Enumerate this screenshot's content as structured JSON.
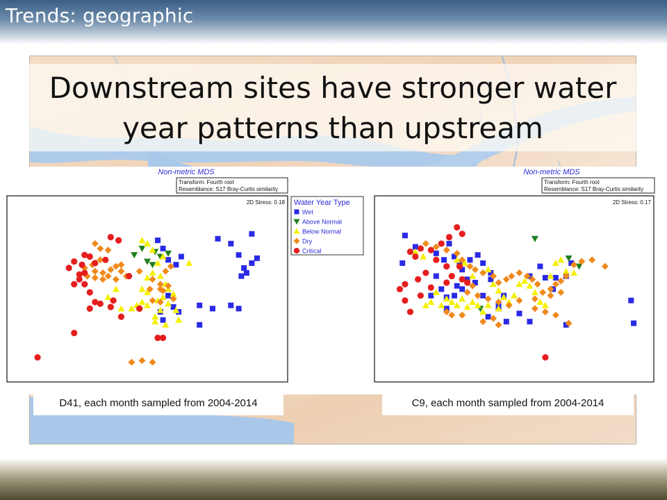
{
  "slide": {
    "header": "Trends: geographic",
    "title_line1": "Downstream sites have stronger water",
    "title_line2": "year patterns than upstream"
  },
  "legend": {
    "title": "Water Year Type",
    "items": [
      {
        "label": "Wet",
        "shape": "square",
        "color": "#2a2ae6"
      },
      {
        "label": "Above Normal",
        "shape": "triangle-down",
        "color": "#1e7f1e"
      },
      {
        "label": "Below Normal",
        "shape": "triangle-up",
        "color": "#f5f000"
      },
      {
        "label": "Dry",
        "shape": "diamond",
        "color": "#f08a1c"
      },
      {
        "label": "Critical",
        "shape": "circle",
        "color": "#e61e1e"
      }
    ]
  },
  "chart_data": [
    {
      "type": "scatter",
      "title": "Non-metric MDS",
      "info_line1": "Transform: Fourth root",
      "info_line2": "Resemblance: S17 Bray-Curtis similarity",
      "stress_text": "2D Stress: 0.18",
      "caption": "D41, each month sampled from 2004-2014",
      "xlim": [
        0,
        100
      ],
      "ylim": [
        0,
        100
      ],
      "axes_shown": false,
      "series": [
        {
          "name": "Wet",
          "points": [
            [
              54,
              82
            ],
            [
              56,
              77
            ],
            [
              58,
              70
            ],
            [
              61,
              67
            ],
            [
              63,
              72
            ],
            [
              77,
              83
            ],
            [
              82,
              80
            ],
            [
              90,
              86
            ],
            [
              85,
              73
            ],
            [
              90,
              68
            ],
            [
              87,
              65
            ],
            [
              88,
              62
            ],
            [
              92,
              71
            ],
            [
              86,
              60
            ],
            [
              58,
              48
            ],
            [
              60,
              41
            ],
            [
              62,
              38
            ],
            [
              56,
              33
            ],
            [
              55,
              38
            ],
            [
              70,
              42
            ],
            [
              75,
              40
            ],
            [
              82,
              42
            ],
            [
              85,
              40
            ],
            [
              70,
              30
            ]
          ]
        },
        {
          "name": "Above Normal",
          "points": [
            [
              45,
              73
            ],
            [
              48,
              77
            ],
            [
              53,
              75
            ],
            [
              50,
              69
            ],
            [
              52,
              67
            ],
            [
              55,
              72
            ],
            [
              58,
              74
            ]
          ]
        },
        {
          "name": "Below Normal",
          "points": [
            [
              48,
              82
            ],
            [
              50,
              80
            ],
            [
              52,
              76
            ],
            [
              54,
              68
            ],
            [
              56,
              72
            ],
            [
              50,
              59
            ],
            [
              52,
              62
            ],
            [
              55,
              60
            ],
            [
              57,
              55
            ],
            [
              58,
              52
            ],
            [
              60,
              49
            ],
            [
              56,
              47
            ],
            [
              54,
              45
            ],
            [
              50,
              50
            ],
            [
              48,
              44
            ],
            [
              46,
              42
            ],
            [
              40,
              40
            ],
            [
              44,
              40
            ],
            [
              38,
              52
            ],
            [
              35,
              47
            ],
            [
              48,
              52
            ],
            [
              50,
              42
            ],
            [
              53,
              35
            ],
            [
              55,
              39
            ],
            [
              58,
              43
            ],
            [
              61,
              39
            ],
            [
              62,
              33
            ],
            [
              66,
              68
            ],
            [
              57,
              30
            ],
            [
              53,
              32
            ]
          ]
        },
        {
          "name": "Dry",
          "points": [
            [
              30,
              80
            ],
            [
              32,
              77
            ],
            [
              35,
              76
            ],
            [
              32,
              70
            ],
            [
              29,
              67
            ],
            [
              26,
              65
            ],
            [
              30,
              63
            ],
            [
              33,
              62
            ],
            [
              36,
              64
            ],
            [
              27,
              60
            ],
            [
              30,
              59
            ],
            [
              33,
              58
            ],
            [
              35,
              60
            ],
            [
              38,
              58
            ],
            [
              40,
              67
            ],
            [
              40,
              63
            ],
            [
              42,
              60
            ],
            [
              47,
              63
            ],
            [
              52,
              58
            ],
            [
              55,
              55
            ],
            [
              57,
              63
            ],
            [
              59,
              66
            ],
            [
              58,
              54
            ],
            [
              56,
              51
            ],
            [
              60,
              46
            ],
            [
              51,
              52
            ],
            [
              38,
              66
            ],
            [
              44,
              7
            ],
            [
              48,
              8
            ],
            [
              52,
              7
            ],
            [
              55,
              44
            ],
            [
              55,
              52
            ],
            [
              52,
              45
            ]
          ]
        },
        {
          "name": "Critical",
          "points": [
            [
              36,
              84
            ],
            [
              39,
              82
            ],
            [
              34,
              70
            ],
            [
              30,
              68
            ],
            [
              28,
              72
            ],
            [
              26,
              62
            ],
            [
              24,
              61
            ],
            [
              22,
              55
            ],
            [
              26,
              55
            ],
            [
              24,
              58
            ],
            [
              20,
              65
            ],
            [
              25,
              67
            ],
            [
              22,
              69
            ],
            [
              26,
              73
            ],
            [
              28,
              50
            ],
            [
              30,
              44
            ],
            [
              32,
              43
            ],
            [
              28,
              40
            ],
            [
              37,
              45
            ],
            [
              22,
              25
            ],
            [
              54,
              22
            ],
            [
              56,
              22
            ],
            [
              47,
              40
            ],
            [
              40,
              35
            ],
            [
              36,
              41
            ],
            [
              43,
              60
            ],
            [
              47,
              40
            ],
            [
              8,
              10
            ]
          ]
        }
      ]
    },
    {
      "type": "scatter",
      "title": "Non-metric MDS",
      "info_line1": "Transform: Fourth root",
      "info_line2": "Resemblance: S17 Bray-Curtis similarity",
      "stress_text": "2D Stress: 0.17",
      "caption": "C9, each month sampled from 2004-2014",
      "xlim": [
        0,
        100
      ],
      "ylim": [
        0,
        100
      ],
      "axes_shown": false,
      "series": [
        {
          "name": "Wet",
          "points": [
            [
              8,
              85
            ],
            [
              12,
              78
            ],
            [
              20,
              74
            ],
            [
              25,
              80
            ],
            [
              23,
              70
            ],
            [
              27,
              72
            ],
            [
              29,
              68
            ],
            [
              30,
              64
            ],
            [
              33,
              70
            ],
            [
              36,
              73
            ],
            [
              38,
              68
            ],
            [
              41,
              62
            ],
            [
              41,
              58
            ],
            [
              35,
              56
            ],
            [
              32,
              58
            ],
            [
              30,
              52
            ],
            [
              28,
              54
            ],
            [
              22,
              52
            ],
            [
              27,
              48
            ],
            [
              24,
              47
            ],
            [
              38,
              48
            ],
            [
              44,
              43
            ],
            [
              46,
              48
            ],
            [
              40,
              35
            ],
            [
              44,
              40
            ],
            [
              47,
              32
            ],
            [
              52,
              37
            ],
            [
              56,
              32
            ],
            [
              56,
              60
            ],
            [
              60,
              66
            ],
            [
              62,
              59
            ],
            [
              66,
              59
            ],
            [
              70,
              30
            ],
            [
              95,
              45
            ],
            [
              96,
              31
            ],
            [
              70,
              60
            ],
            [
              72,
              68
            ],
            [
              65,
              52
            ],
            [
              20,
              60
            ],
            [
              24,
              40
            ],
            [
              18,
              48
            ],
            [
              7,
              68
            ]
          ]
        },
        {
          "name": "Above Normal",
          "points": [
            [
              58,
              83
            ],
            [
              71,
              71
            ],
            [
              75,
              66
            ],
            [
              37,
              40
            ]
          ]
        },
        {
          "name": "Below Normal",
          "points": [
            [
              12,
              75
            ],
            [
              15,
              72
            ],
            [
              28,
              70
            ],
            [
              31,
              68
            ],
            [
              34,
              60
            ],
            [
              40,
              64
            ],
            [
              42,
              55
            ],
            [
              44,
              51
            ],
            [
              46,
              47
            ],
            [
              48,
              44
            ],
            [
              50,
              48
            ],
            [
              52,
              55
            ],
            [
              54,
              57
            ],
            [
              56,
              54
            ],
            [
              58,
              50
            ],
            [
              60,
              44
            ],
            [
              62,
              42
            ],
            [
              64,
              60
            ],
            [
              66,
              68
            ],
            [
              68,
              70
            ],
            [
              70,
              63
            ],
            [
              73,
              62
            ],
            [
              20,
              50
            ],
            [
              24,
              46
            ],
            [
              26,
              44
            ],
            [
              30,
              46
            ],
            [
              34,
              44
            ],
            [
              36,
              42
            ],
            [
              28,
              42
            ],
            [
              32,
              41
            ],
            [
              16,
              42
            ],
            [
              18,
              44
            ],
            [
              22,
              42
            ],
            [
              44,
              40
            ],
            [
              40,
              42
            ],
            [
              38,
              38
            ]
          ]
        },
        {
          "name": "Dry",
          "points": [
            [
              16,
              80
            ],
            [
              20,
              78
            ],
            [
              24,
              76
            ],
            [
              28,
              74
            ],
            [
              30,
              70
            ],
            [
              33,
              66
            ],
            [
              35,
              64
            ],
            [
              38,
              62
            ],
            [
              42,
              60
            ],
            [
              44,
              56
            ],
            [
              47,
              58
            ],
            [
              49,
              60
            ],
            [
              52,
              62
            ],
            [
              55,
              60
            ],
            [
              57,
              58
            ],
            [
              59,
              55
            ],
            [
              61,
              50
            ],
            [
              64,
              52
            ],
            [
              66,
              55
            ],
            [
              68,
              57
            ],
            [
              70,
              60
            ],
            [
              73,
              67
            ],
            [
              76,
              69
            ],
            [
              80,
              70
            ],
            [
              85,
              66
            ],
            [
              68,
              50
            ],
            [
              64,
              48
            ],
            [
              58,
              46
            ],
            [
              52,
              45
            ],
            [
              48,
              42
            ],
            [
              44,
              44
            ],
            [
              40,
              46
            ],
            [
              36,
              48
            ],
            [
              32,
              50
            ],
            [
              34,
              54
            ],
            [
              42,
              34
            ],
            [
              38,
              32
            ],
            [
              44,
              30
            ],
            [
              30,
              36
            ],
            [
              24,
              38
            ],
            [
              26,
              36
            ],
            [
              58,
              40
            ],
            [
              62,
              38
            ],
            [
              66,
              36
            ],
            [
              71,
              31
            ]
          ]
        },
        {
          "name": "Critical",
          "points": [
            [
              28,
              90
            ],
            [
              30,
              86
            ],
            [
              25,
              84
            ],
            [
              22,
              80
            ],
            [
              18,
              76
            ],
            [
              14,
              77
            ],
            [
              10,
              75
            ],
            [
              12,
              72
            ],
            [
              20,
              70
            ],
            [
              24,
              66
            ],
            [
              16,
              62
            ],
            [
              13,
              58
            ],
            [
              8,
              55
            ],
            [
              6,
              52
            ],
            [
              8,
              45
            ],
            [
              14,
              48
            ],
            [
              18,
              53
            ],
            [
              10,
              38
            ],
            [
              62,
              10
            ],
            [
              26,
              60
            ],
            [
              30,
              58
            ],
            [
              24,
              56
            ],
            [
              32,
              56
            ],
            [
              29,
              66
            ]
          ]
        }
      ]
    }
  ]
}
